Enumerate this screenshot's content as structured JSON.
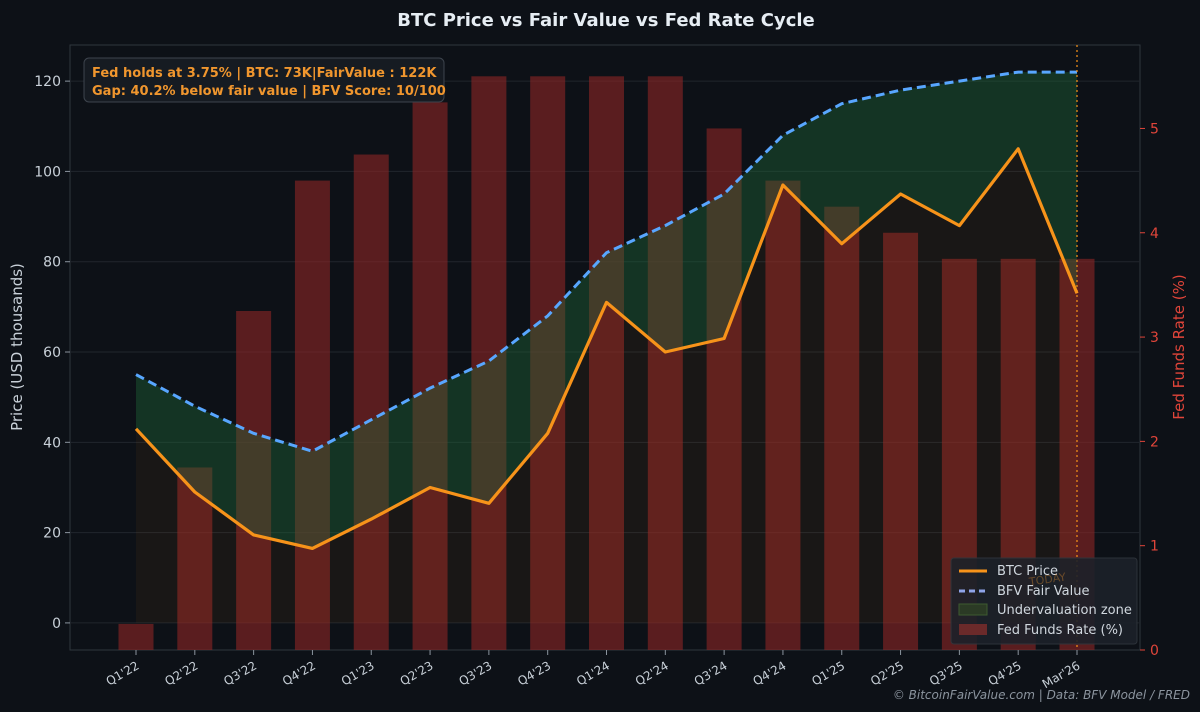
{
  "colors": {
    "background": "#0d1117",
    "btc": "#f7931a",
    "fair_value": "#58a6ff",
    "undervaluation": "#1f6f3a",
    "fed_rate": "#8b2525",
    "fed_axis": "#e0453a",
    "annotation_bg": "#161b22"
  },
  "annotation": {
    "line1": "Fed holds at 3.75%  |  BTC: 73K|FairValue : 122K",
    "line2": "Gap: 40.2% below fair value  |  BFV Score: 10/100"
  },
  "footer": "© BitcoinFairValue.com  |  Data: BFV Model / FRED",
  "today_label": "TODAY",
  "chart_data": {
    "type": "line",
    "title": "BTC Price vs Fair Value vs Fed Rate Cycle",
    "categories": [
      "Q1'22",
      "Q2'22",
      "Q3'22",
      "Q4'22",
      "Q1'23",
      "Q2'23",
      "Q3'23",
      "Q4'23",
      "Q1'24",
      "Q2'24",
      "Q3'24",
      "Q4'24",
      "Q1'25",
      "Q2'25",
      "Q3'25",
      "Q4'25",
      "Mar'26"
    ],
    "ylabel": "Price (USD thousands)",
    "ylabel_right": "Fed Funds Rate (%)",
    "ylim": [
      -6,
      128
    ],
    "ylim_right": [
      0,
      5.8
    ],
    "yticks": [
      0,
      20,
      40,
      60,
      80,
      100,
      120
    ],
    "yticks_right": [
      0,
      1,
      2,
      3,
      4,
      5
    ],
    "grid": true,
    "legend_position": "bottom-right",
    "series": [
      {
        "name": "BTC Price",
        "type": "line",
        "axis": "left",
        "values": [
          43,
          29,
          19.5,
          16.5,
          23,
          30,
          26.5,
          42,
          71,
          60,
          63,
          97,
          84,
          95,
          88,
          105,
          73
        ]
      },
      {
        "name": "BFV Fair Value",
        "type": "line",
        "style": "dashed",
        "axis": "left",
        "values": [
          55,
          48,
          42,
          38,
          45,
          52,
          58,
          68,
          82,
          88,
          95,
          108,
          115,
          118,
          120,
          122,
          122
        ]
      },
      {
        "name": "Undervaluation zone",
        "type": "area",
        "axis": "left",
        "between": [
          "BTC Price",
          "BFV Fair Value"
        ]
      },
      {
        "name": "Fed Funds Rate (%)",
        "type": "bar",
        "axis": "right",
        "values": [
          0.25,
          1.75,
          3.25,
          4.5,
          4.75,
          5.25,
          5.5,
          5.5,
          5.5,
          5.5,
          5.0,
          4.5,
          4.25,
          4.0,
          3.75,
          3.75,
          3.75
        ]
      }
    ]
  }
}
